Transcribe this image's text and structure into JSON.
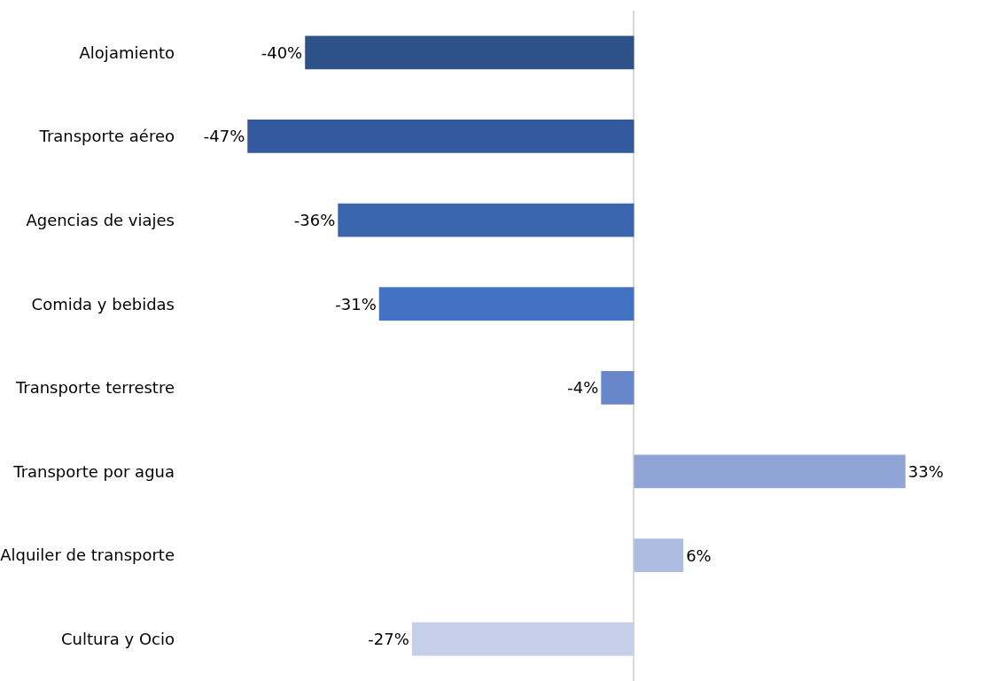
{
  "chart_data": {
    "type": "bar",
    "orientation": "horizontal",
    "categories": [
      "Alojamiento",
      "Transporte aéreo",
      "Agencias de viajes",
      "Comida y bebidas",
      "Transporte terrestre",
      "Transporte por agua",
      "Alquiler de transporte",
      "Cultura y Ocio"
    ],
    "values": [
      -40,
      -47,
      -36,
      -31,
      -4,
      33,
      6,
      -27
    ],
    "value_labels": [
      "-40%",
      "-47%",
      "-36%",
      "-31%",
      "-4%",
      "33%",
      "6%",
      "-27%"
    ],
    "colors": [
      "#2f5189",
      "#335a9f",
      "#3a64ae",
      "#4372c4",
      "#6787ca",
      "#8fa5d6",
      "#adbce0",
      "#c6cfe8"
    ],
    "tick_labels": "y"
  }
}
